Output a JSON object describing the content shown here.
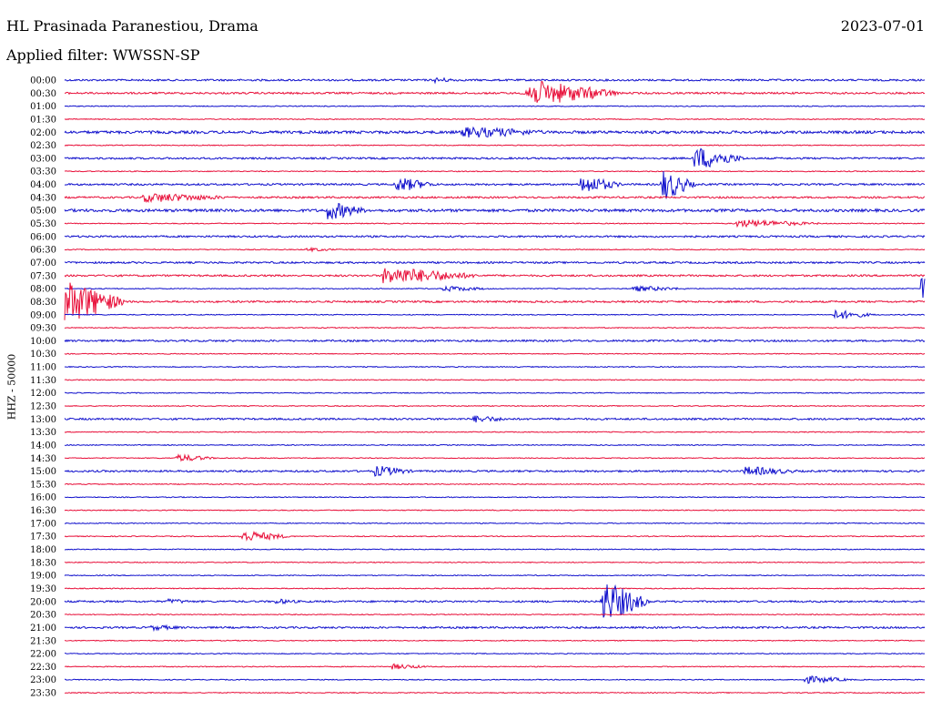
{
  "header": {
    "station": "HL Prasinada Paranestiou, Drama",
    "date": "2023-07-01",
    "filter": "Applied filter: WWSSN-SP"
  },
  "chart_data": {
    "type": "line",
    "ylabel": "HHZ - 50000",
    "colors": [
      "#1010cc",
      "#e8103a"
    ],
    "rows": [
      "00:00",
      "00:30",
      "01:00",
      "01:30",
      "02:00",
      "02:30",
      "03:00",
      "03:30",
      "04:00",
      "04:30",
      "05:00",
      "05:30",
      "06:00",
      "06:30",
      "07:00",
      "07:30",
      "08:00",
      "08:30",
      "09:00",
      "09:30",
      "10:00",
      "10:30",
      "11:00",
      "11:30",
      "12:00",
      "12:30",
      "13:00",
      "13:30",
      "14:00",
      "14:30",
      "15:00",
      "15:30",
      "16:00",
      "16:30",
      "17:00",
      "17:30",
      "18:00",
      "18:30",
      "19:00",
      "19:30",
      "20:00",
      "20:30",
      "21:00",
      "21:30",
      "22:00",
      "22:30",
      "23:00",
      "23:30"
    ],
    "noise": [
      2,
      2,
      1,
      1,
      3,
      1,
      2,
      1,
      2,
      2,
      3,
      1,
      2,
      1,
      2,
      2,
      1,
      2,
      1,
      1,
      2,
      1,
      1,
      1,
      1,
      1,
      2,
      1,
      1,
      1,
      2,
      1,
      1,
      1,
      1,
      1,
      1,
      1,
      1,
      1,
      2,
      1,
      2,
      1,
      1,
      1,
      1,
      1
    ],
    "events": [
      {
        "row": 0,
        "x": 0.43,
        "amp": 3,
        "dur": 0.01
      },
      {
        "row": 1,
        "x": 0.535,
        "amp": 13,
        "dur": 0.08
      },
      {
        "row": 4,
        "x": 0.46,
        "amp": 6,
        "dur": 0.08
      },
      {
        "row": 6,
        "x": 0.732,
        "amp": 12,
        "dur": 0.03
      },
      {
        "row": 8,
        "x": 0.385,
        "amp": 8,
        "dur": 0.02
      },
      {
        "row": 8,
        "x": 0.6,
        "amp": 10,
        "dur": 0.02
      },
      {
        "row": 8,
        "x": 0.695,
        "amp": 17,
        "dur": 0.01
      },
      {
        "row": 9,
        "x": 0.09,
        "amp": 5,
        "dur": 0.08
      },
      {
        "row": 10,
        "x": 0.305,
        "amp": 10,
        "dur": 0.02
      },
      {
        "row": 11,
        "x": 0.78,
        "amp": 4,
        "dur": 0.07
      },
      {
        "row": 13,
        "x": 0.28,
        "amp": 2,
        "dur": 0.02
      },
      {
        "row": 15,
        "x": 0.37,
        "amp": 9,
        "dur": 0.08
      },
      {
        "row": 16,
        "x": 0.44,
        "amp": 3,
        "dur": 0.03
      },
      {
        "row": 16,
        "x": 0.66,
        "amp": 3,
        "dur": 0.04
      },
      {
        "row": 16,
        "x": 0.995,
        "amp": 15,
        "dur": 0.005
      },
      {
        "row": 17,
        "x": 0.0,
        "amp": 22,
        "dur": 0.04
      },
      {
        "row": 18,
        "x": 0.895,
        "amp": 5,
        "dur": 0.02
      },
      {
        "row": 26,
        "x": 0.475,
        "amp": 4,
        "dur": 0.02
      },
      {
        "row": 29,
        "x": 0.13,
        "amp": 4,
        "dur": 0.02
      },
      {
        "row": 30,
        "x": 0.36,
        "amp": 6,
        "dur": 0.02
      },
      {
        "row": 30,
        "x": 0.79,
        "amp": 5,
        "dur": 0.04
      },
      {
        "row": 35,
        "x": 0.205,
        "amp": 6,
        "dur": 0.03
      },
      {
        "row": 40,
        "x": 0.625,
        "amp": 22,
        "dur": 0.025
      },
      {
        "row": 40,
        "x": 0.12,
        "amp": 3,
        "dur": 0.01
      },
      {
        "row": 40,
        "x": 0.245,
        "amp": 3,
        "dur": 0.01
      },
      {
        "row": 42,
        "x": 0.1,
        "amp": 3,
        "dur": 0.02
      },
      {
        "row": 45,
        "x": 0.38,
        "amp": 3,
        "dur": 0.02
      },
      {
        "row": 46,
        "x": 0.86,
        "amp": 4,
        "dur": 0.03
      }
    ]
  }
}
